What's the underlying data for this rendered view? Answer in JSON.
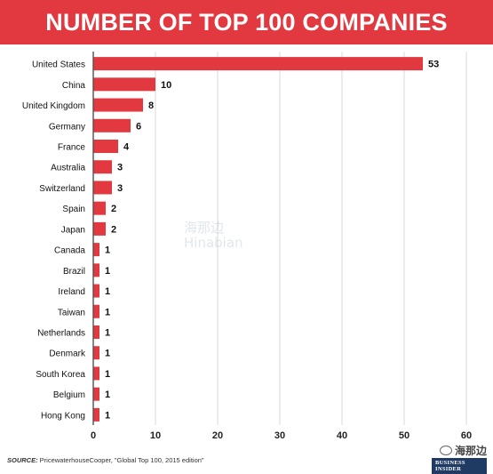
{
  "header": {
    "title": "NUMBER OF TOP 100 COMPANIES"
  },
  "chart_data": {
    "type": "bar",
    "orientation": "horizontal",
    "title": "NUMBER OF TOP 100 COMPANIES",
    "categories": [
      "United States",
      "China",
      "United Kingdom",
      "Germany",
      "France",
      "Australia",
      "Switzerland",
      "Spain",
      "Japan",
      "Canada",
      "Brazil",
      "Ireland",
      "Taiwan",
      "Netherlands",
      "Denmark",
      "South Korea",
      "Belgium",
      "Hong Kong"
    ],
    "values": [
      53,
      10,
      8,
      6,
      4,
      3,
      3,
      2,
      2,
      1,
      1,
      1,
      1,
      1,
      1,
      1,
      1,
      1
    ],
    "xlim": [
      0,
      60
    ],
    "xticks": [
      0,
      10,
      20,
      30,
      40,
      50,
      60
    ],
    "xlabel": "",
    "ylabel": "",
    "grid": "vertical",
    "bar_color": "#e2383f",
    "data_labels": true
  },
  "footer": {
    "source_label": "SOURCE:",
    "source_text": " PricewaterhouseCooper, \"Global Top 100, 2015 edition\"",
    "logo_text": "海那边",
    "publisher": "BUSINESS INSIDER"
  },
  "watermark": {
    "line1": "海那边",
    "line2": "Hinabian"
  },
  "colors": {
    "accent": "#e2383f",
    "grid": "#d9d9d9",
    "axis": "#333333",
    "publisher_bg": "#1f3a63"
  }
}
